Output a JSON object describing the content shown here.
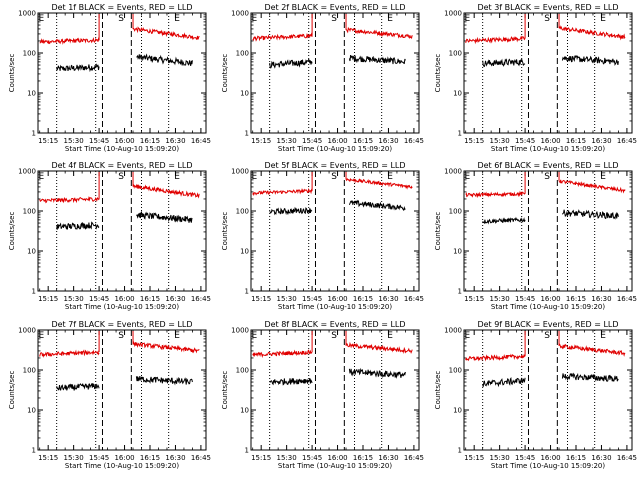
{
  "figure": {
    "title_format": "Det {n}f BLACK = Events, RED = LLD",
    "xlabel": "Start Time (10-Aug-10 15:09:20)",
    "ylabel": "Counts/sec",
    "x_tick_labels": [
      "15:15",
      "15:30",
      "15:45",
      "16:00",
      "16:15",
      "16:30",
      "16:45"
    ],
    "y_tick_labels": [
      "1",
      "10",
      "100",
      "1000"
    ],
    "colors": {
      "events": "#000000",
      "lld": "#e00000",
      "axes": "#000000",
      "background": "#ffffff"
    }
  },
  "chart_data": [
    {
      "type": "line",
      "title": "Det 1f BLACK = Events, RED = LLD",
      "xlabel": "Start Time (10-Aug-10 15:09:20)",
      "ylabel": "Counts/sec",
      "xlim": [
        "15:09",
        "16:48"
      ],
      "ylim": [
        1,
        1000
      ],
      "yscale": "log",
      "marker_text": [
        "E",
        "S",
        "E"
      ],
      "marker_times": [
        "15:11",
        "15:58",
        "16:31"
      ],
      "dashed_lines": [
        "15:47",
        "16:04"
      ],
      "dotted_lines": [
        "15:20",
        "15:43",
        "16:10",
        "16:26"
      ],
      "series": [
        {
          "name": "Events",
          "color": "black",
          "segments": [
            {
              "start": "15:20",
              "end": "15:45",
              "start_value": 40,
              "end_value": 45,
              "noise": 0.08
            },
            {
              "start": "16:07",
              "end": "16:40",
              "start_value": 80,
              "end_value": 55,
              "noise": 0.08
            }
          ]
        },
        {
          "name": "LLD",
          "color": "red",
          "segments": [
            {
              "start": "15:10",
              "end": "15:45",
              "start_value": 190,
              "end_value": 210,
              "noise": 0.05
            },
            {
              "start": "16:05",
              "end": "16:44",
              "start_value": 400,
              "end_value": 240,
              "noise": 0.05
            }
          ]
        }
      ]
    },
    {
      "type": "line",
      "title": "Det 2f BLACK = Events, RED = LLD",
      "xlabel": "Start Time (10-Aug-10 15:09:20)",
      "ylabel": "Counts/sec",
      "xlim": [
        "15:09",
        "16:48"
      ],
      "ylim": [
        1,
        1000
      ],
      "yscale": "log",
      "marker_text": [
        "E",
        "S",
        "E"
      ],
      "marker_times": [
        "15:11",
        "15:58",
        "16:31"
      ],
      "dashed_lines": [
        "15:47",
        "16:04"
      ],
      "dotted_lines": [
        "15:20",
        "15:43",
        "16:10",
        "16:26"
      ],
      "series": [
        {
          "name": "Events",
          "color": "black",
          "segments": [
            {
              "start": "15:20",
              "end": "15:45",
              "start_value": 50,
              "end_value": 60,
              "noise": 0.08
            },
            {
              "start": "16:07",
              "end": "16:40",
              "start_value": 75,
              "end_value": 60,
              "noise": 0.08
            }
          ]
        },
        {
          "name": "LLD",
          "color": "red",
          "segments": [
            {
              "start": "15:10",
              "end": "15:45",
              "start_value": 230,
              "end_value": 270,
              "noise": 0.05
            },
            {
              "start": "16:05",
              "end": "16:44",
              "start_value": 380,
              "end_value": 260,
              "noise": 0.05
            }
          ]
        }
      ]
    },
    {
      "type": "line",
      "title": "Det 3f BLACK = Events, RED = LLD",
      "xlabel": "Start Time (10-Aug-10 15:09:20)",
      "ylabel": "Counts/sec",
      "xlim": [
        "15:09",
        "16:48"
      ],
      "ylim": [
        1,
        1000
      ],
      "yscale": "log",
      "marker_text": [
        "E",
        "S",
        "E"
      ],
      "marker_times": [
        "15:11",
        "15:58",
        "16:31"
      ],
      "dashed_lines": [
        "15:47",
        "16:04"
      ],
      "dotted_lines": [
        "15:20",
        "15:43",
        "16:10",
        "16:26"
      ],
      "series": [
        {
          "name": "Events",
          "color": "black",
          "segments": [
            {
              "start": "15:20",
              "end": "15:45",
              "start_value": 55,
              "end_value": 60,
              "noise": 0.08
            },
            {
              "start": "16:07",
              "end": "16:40",
              "start_value": 75,
              "end_value": 60,
              "noise": 0.08
            }
          ]
        },
        {
          "name": "LLD",
          "color": "red",
          "segments": [
            {
              "start": "15:10",
              "end": "15:45",
              "start_value": 200,
              "end_value": 230,
              "noise": 0.05
            },
            {
              "start": "16:05",
              "end": "16:44",
              "start_value": 420,
              "end_value": 250,
              "noise": 0.05
            }
          ]
        }
      ]
    },
    {
      "type": "line",
      "title": "Det 4f BLACK = Events, RED = LLD",
      "xlabel": "Start Time (10-Aug-10 15:09:20)",
      "ylabel": "Counts/sec",
      "xlim": [
        "15:09",
        "16:48"
      ],
      "ylim": [
        1,
        1000
      ],
      "yscale": "log",
      "marker_text": [
        "E",
        "S",
        "E"
      ],
      "marker_times": [
        "15:11",
        "15:58",
        "16:31"
      ],
      "dashed_lines": [
        "15:47",
        "16:04"
      ],
      "dotted_lines": [
        "15:20",
        "15:43",
        "16:10",
        "16:26"
      ],
      "series": [
        {
          "name": "Events",
          "color": "black",
          "segments": [
            {
              "start": "15:20",
              "end": "15:45",
              "start_value": 40,
              "end_value": 45,
              "noise": 0.08
            },
            {
              "start": "16:07",
              "end": "16:40",
              "start_value": 80,
              "end_value": 60,
              "noise": 0.08
            }
          ]
        },
        {
          "name": "LLD",
          "color": "red",
          "segments": [
            {
              "start": "15:10",
              "end": "15:45",
              "start_value": 180,
              "end_value": 200,
              "noise": 0.05
            },
            {
              "start": "16:05",
              "end": "16:44",
              "start_value": 420,
              "end_value": 240,
              "noise": 0.05
            }
          ]
        }
      ]
    },
    {
      "type": "line",
      "title": "Det 5f BLACK = Events, RED = LLD",
      "xlabel": "Start Time (10-Aug-10 15:09:20)",
      "ylabel": "Counts/sec",
      "xlim": [
        "15:09",
        "16:48"
      ],
      "ylim": [
        1,
        1000
      ],
      "yscale": "log",
      "marker_text": [
        "E",
        "S",
        "E"
      ],
      "marker_times": [
        "15:11",
        "15:58",
        "16:31"
      ],
      "dashed_lines": [
        "15:47",
        "16:04"
      ],
      "dotted_lines": [
        "15:20",
        "15:43",
        "16:10",
        "16:26"
      ],
      "series": [
        {
          "name": "Events",
          "color": "black",
          "segments": [
            {
              "start": "15:20",
              "end": "15:45",
              "start_value": 95,
              "end_value": 105,
              "noise": 0.07
            },
            {
              "start": "16:07",
              "end": "16:40",
              "start_value": 160,
              "end_value": 120,
              "noise": 0.07
            }
          ]
        },
        {
          "name": "LLD",
          "color": "red",
          "segments": [
            {
              "start": "15:10",
              "end": "15:45",
              "start_value": 280,
              "end_value": 320,
              "noise": 0.04
            },
            {
              "start": "16:05",
              "end": "16:44",
              "start_value": 620,
              "end_value": 400,
              "noise": 0.04
            }
          ]
        }
      ]
    },
    {
      "type": "line",
      "title": "Det 6f BLACK = Events, RED = LLD",
      "xlabel": "Start Time (10-Aug-10 15:09:20)",
      "ylabel": "Counts/sec",
      "xlim": [
        "15:09",
        "16:48"
      ],
      "ylim": [
        1,
        1000
      ],
      "yscale": "log",
      "marker_text": [
        "E",
        "S",
        "E"
      ],
      "marker_times": [
        "15:11",
        "15:58",
        "16:31"
      ],
      "dashed_lines": [
        "15:47",
        "16:04"
      ],
      "dotted_lines": [
        "15:20",
        "15:43",
        "16:10",
        "16:26"
      ],
      "series": [
        {
          "name": "Events",
          "color": "black",
          "segments": [
            {
              "start": "15:20",
              "end": "15:45",
              "start_value": 55,
              "end_value": 60,
              "noise": 0.05
            },
            {
              "start": "16:07",
              "end": "16:40",
              "start_value": 90,
              "end_value": 75,
              "noise": 0.08
            }
          ]
        },
        {
          "name": "LLD",
          "color": "red",
          "segments": [
            {
              "start": "15:10",
              "end": "15:45",
              "start_value": 250,
              "end_value": 270,
              "noise": 0.04
            },
            {
              "start": "16:05",
              "end": "16:44",
              "start_value": 560,
              "end_value": 320,
              "noise": 0.04
            }
          ]
        }
      ]
    },
    {
      "type": "line",
      "title": "Det 7f BLACK = Events, RED = LLD",
      "xlabel": "Start Time (10-Aug-10 15:09:20)",
      "ylabel": "Counts/sec",
      "xlim": [
        "15:09",
        "16:48"
      ],
      "ylim": [
        1,
        1000
      ],
      "yscale": "log",
      "marker_text": [
        "E",
        "S",
        "E"
      ],
      "marker_times": [
        "15:11",
        "15:58",
        "16:31"
      ],
      "dashed_lines": [
        "15:47",
        "16:04"
      ],
      "dotted_lines": [
        "15:20",
        "15:43",
        "16:10",
        "16:26"
      ],
      "series": [
        {
          "name": "Events",
          "color": "black",
          "segments": [
            {
              "start": "15:20",
              "end": "15:45",
              "start_value": 35,
              "end_value": 40,
              "noise": 0.08
            },
            {
              "start": "16:07",
              "end": "16:40",
              "start_value": 60,
              "end_value": 50,
              "noise": 0.08
            }
          ]
        },
        {
          "name": "LLD",
          "color": "red",
          "segments": [
            {
              "start": "15:10",
              "end": "15:45",
              "start_value": 240,
              "end_value": 280,
              "noise": 0.05
            },
            {
              "start": "16:05",
              "end": "16:44",
              "start_value": 450,
              "end_value": 300,
              "noise": 0.05
            }
          ]
        }
      ]
    },
    {
      "type": "line",
      "title": "Det 8f BLACK = Events, RED = LLD",
      "xlabel": "Start Time (10-Aug-10 15:09:20)",
      "ylabel": "Counts/sec",
      "xlim": [
        "15:09",
        "16:48"
      ],
      "ylim": [
        1,
        1000
      ],
      "yscale": "log",
      "marker_text": [
        "E",
        "S",
        "E"
      ],
      "marker_times": [
        "15:11",
        "15:58",
        "16:31"
      ],
      "dashed_lines": [
        "15:47",
        "16:04"
      ],
      "dotted_lines": [
        "15:20",
        "15:43",
        "16:10",
        "16:26"
      ],
      "series": [
        {
          "name": "Events",
          "color": "black",
          "segments": [
            {
              "start": "15:20",
              "end": "15:45",
              "start_value": 50,
              "end_value": 55,
              "noise": 0.08
            },
            {
              "start": "16:07",
              "end": "16:40",
              "start_value": 90,
              "end_value": 75,
              "noise": 0.08
            }
          ]
        },
        {
          "name": "LLD",
          "color": "red",
          "segments": [
            {
              "start": "15:10",
              "end": "15:45",
              "start_value": 240,
              "end_value": 280,
              "noise": 0.05
            },
            {
              "start": "16:05",
              "end": "16:44",
              "start_value": 420,
              "end_value": 300,
              "noise": 0.05
            }
          ]
        }
      ]
    },
    {
      "type": "line",
      "title": "Det 9f BLACK = Events, RED = LLD",
      "xlabel": "Start Time (10-Aug-10 15:09:20)",
      "ylabel": "Counts/sec",
      "xlim": [
        "15:09",
        "16:48"
      ],
      "ylim": [
        1,
        1000
      ],
      "yscale": "log",
      "marker_text": [
        "E",
        "S",
        "E"
      ],
      "marker_times": [
        "15:11",
        "15:58",
        "16:31"
      ],
      "dashed_lines": [
        "15:47",
        "16:04"
      ],
      "dotted_lines": [
        "15:20",
        "15:43",
        "16:10",
        "16:26"
      ],
      "series": [
        {
          "name": "Events",
          "color": "black",
          "segments": [
            {
              "start": "15:20",
              "end": "15:45",
              "start_value": 45,
              "end_value": 55,
              "noise": 0.08
            },
            {
              "start": "16:07",
              "end": "16:40",
              "start_value": 70,
              "end_value": 60,
              "noise": 0.08
            }
          ]
        },
        {
          "name": "LLD",
          "color": "red",
          "segments": [
            {
              "start": "15:10",
              "end": "15:45",
              "start_value": 190,
              "end_value": 220,
              "noise": 0.05
            },
            {
              "start": "16:05",
              "end": "16:44",
              "start_value": 400,
              "end_value": 260,
              "noise": 0.05
            }
          ]
        }
      ]
    }
  ]
}
